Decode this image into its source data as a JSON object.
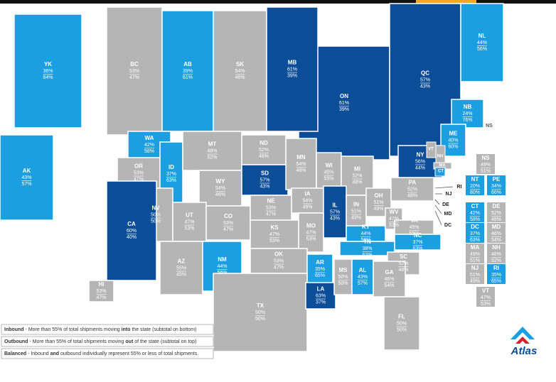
{
  "colors": {
    "inbound": "#1c9fe0",
    "outbound": "#0b4d96",
    "balanced": "#b5b5b5"
  },
  "regions": [
    {
      "code": "YK",
      "top": "36%",
      "bottom": "64%",
      "kind": "inbound"
    },
    {
      "code": "AK",
      "top": "43%",
      "bottom": "57%",
      "kind": "inbound"
    },
    {
      "code": "BC",
      "top": "53%",
      "bottom": "47%",
      "kind": "balanced"
    },
    {
      "code": "AB",
      "top": "39%",
      "bottom": "61%",
      "kind": "inbound"
    },
    {
      "code": "SK",
      "top": "54%",
      "bottom": "46%",
      "kind": "balanced"
    },
    {
      "code": "ON",
      "top": "61%",
      "bottom": "39%",
      "kind": "outbound"
    },
    {
      "code": "MB",
      "top": "61%",
      "bottom": "39%",
      "kind": "outbound"
    },
    {
      "code": "QC",
      "top": "57%",
      "bottom": "43%",
      "kind": "outbound"
    },
    {
      "code": "NL",
      "top": "44%",
      "bottom": "56%",
      "kind": "inbound"
    },
    {
      "code": "NB",
      "top": "24%",
      "bottom": "76%",
      "kind": "inbound"
    },
    {
      "code": "WA",
      "top": "42%",
      "bottom": "58%",
      "kind": "inbound"
    },
    {
      "code": "OR",
      "top": "53%",
      "bottom": "47%",
      "kind": "balanced"
    },
    {
      "code": "ID",
      "top": "37%",
      "bottom": "63%",
      "kind": "inbound"
    },
    {
      "code": "MT",
      "top": "48%",
      "bottom": "52%",
      "kind": "balanced"
    },
    {
      "code": "WY",
      "top": "54%",
      "bottom": "46%",
      "kind": "balanced"
    },
    {
      "code": "ND",
      "top": "52%",
      "bottom": "48%",
      "kind": "balanced"
    },
    {
      "code": "SD",
      "top": "57%",
      "bottom": "43%",
      "kind": "outbound"
    },
    {
      "code": "MN",
      "top": "54%",
      "bottom": "46%",
      "kind": "balanced"
    },
    {
      "code": "WI",
      "top": "45%",
      "bottom": "55%",
      "kind": "balanced"
    },
    {
      "code": "MI",
      "top": "52%",
      "bottom": "48%",
      "kind": "balanced"
    },
    {
      "code": "NV",
      "top": "50%",
      "bottom": "50%",
      "kind": "balanced"
    },
    {
      "code": "UT",
      "top": "47%",
      "bottom": "53%",
      "kind": "balanced"
    },
    {
      "code": "CO",
      "top": "53%",
      "bottom": "47%",
      "kind": "balanced"
    },
    {
      "code": "NE",
      "top": "53%",
      "bottom": "47%",
      "kind": "balanced"
    },
    {
      "code": "IA",
      "top": "54%",
      "bottom": "46%",
      "kind": "balanced"
    },
    {
      "code": "IL",
      "top": "57%",
      "bottom": "43%",
      "kind": "outbound"
    },
    {
      "code": "IN",
      "top": "51%",
      "bottom": "49%",
      "kind": "balanced"
    },
    {
      "code": "OH",
      "top": "51%",
      "bottom": "49%",
      "kind": "balanced"
    },
    {
      "code": "PA",
      "top": "52%",
      "bottom": "48%",
      "kind": "balanced"
    },
    {
      "code": "NY",
      "top": "56%",
      "bottom": "44%",
      "kind": "outbound"
    },
    {
      "code": "CA",
      "top": "60%",
      "bottom": "40%",
      "kind": "outbound"
    },
    {
      "code": "AZ",
      "top": "55%",
      "bottom": "45%",
      "kind": "balanced"
    },
    {
      "code": "NM",
      "top": "44%",
      "bottom": "56%",
      "kind": "inbound"
    },
    {
      "code": "KS",
      "top": "47%",
      "bottom": "53%",
      "kind": "balanced"
    },
    {
      "code": "MO",
      "top": "47%",
      "bottom": "53%",
      "kind": "balanced"
    },
    {
      "code": "KY",
      "top": "44%",
      "bottom": "56%",
      "kind": "inbound"
    },
    {
      "code": "WV",
      "top": "47%",
      "bottom": "53%",
      "kind": "balanced"
    },
    {
      "code": "VA",
      "top": "45%",
      "bottom": "55%",
      "kind": "balanced"
    },
    {
      "code": "NC",
      "top": "37%",
      "bottom": "63%",
      "kind": "inbound"
    },
    {
      "code": "TN",
      "top": "38%",
      "bottom": "62%",
      "kind": "inbound"
    },
    {
      "code": "OK",
      "top": "53%",
      "bottom": "47%",
      "kind": "balanced"
    },
    {
      "code": "AR",
      "top": "35%",
      "bottom": "65%",
      "kind": "inbound"
    },
    {
      "code": "SC",
      "top": "52%",
      "bottom": "48%",
      "kind": "balanced"
    },
    {
      "code": "TX",
      "top": "50%",
      "bottom": "50%",
      "kind": "balanced"
    },
    {
      "code": "LA",
      "top": "63%",
      "bottom": "37%",
      "kind": "outbound"
    },
    {
      "code": "MS",
      "top": "50%",
      "bottom": "50%",
      "kind": "balanced"
    },
    {
      "code": "AL",
      "top": "43%",
      "bottom": "57%",
      "kind": "inbound"
    },
    {
      "code": "GA",
      "top": "46%",
      "bottom": "54%",
      "kind": "balanced"
    },
    {
      "code": "FL",
      "top": "50%",
      "bottom": "50%",
      "kind": "balanced"
    },
    {
      "code": "HI",
      "top": "53%",
      "bottom": "47%",
      "kind": "balanced"
    },
    {
      "code": "ME",
      "top": "40%",
      "bottom": "60%",
      "kind": "inbound"
    }
  ],
  "map_labels": [
    "NS",
    "VT",
    "NH",
    "MA",
    "CT",
    "RI",
    "NJ",
    "DE",
    "MD",
    "DC"
  ],
  "side_table": [
    {
      "code": "NS",
      "top": "49%",
      "bottom": "51%",
      "kind": "balanced"
    },
    {
      "code": "NT",
      "top": "20%",
      "bottom": "80%",
      "kind": "inbound"
    },
    {
      "code": "PE",
      "top": "34%",
      "bottom": "66%",
      "kind": "inbound"
    },
    {
      "code": "CT",
      "top": "42%",
      "bottom": "58%",
      "kind": "inbound"
    },
    {
      "code": "DE",
      "top": "52%",
      "bottom": "48%",
      "kind": "balanced"
    },
    {
      "code": "DC",
      "top": "37%",
      "bottom": "63%",
      "kind": "inbound"
    },
    {
      "code": "MD",
      "top": "46%",
      "bottom": "54%",
      "kind": "balanced"
    },
    {
      "code": "MA",
      "top": "49%",
      "bottom": "51%",
      "kind": "balanced"
    },
    {
      "code": "NH",
      "top": "48%",
      "bottom": "52%",
      "kind": "balanced"
    },
    {
      "code": "NJ",
      "top": "51%",
      "bottom": "49%",
      "kind": "balanced"
    },
    {
      "code": "RI",
      "top": "35%",
      "bottom": "65%",
      "kind": "inbound"
    },
    {
      "code": "VT",
      "top": "47%",
      "bottom": "53%",
      "kind": "balanced"
    }
  ],
  "legend": [
    {
      "label": "Inbound",
      "text": " - More than 55% of total shipments moving ",
      "bold": "into",
      "rest": " the state (subtotal on bottom)"
    },
    {
      "label": "Outbound",
      "text": " - More than 55% of total shipments moving ",
      "bold": "out",
      "rest": " of the state (subtotal on top)"
    },
    {
      "label": "Balanced",
      "text": " - Inbound ",
      "bold": "and",
      "rest": " outbound individually represent 55% or less of total shipments."
    }
  ],
  "logo": "Atlas"
}
